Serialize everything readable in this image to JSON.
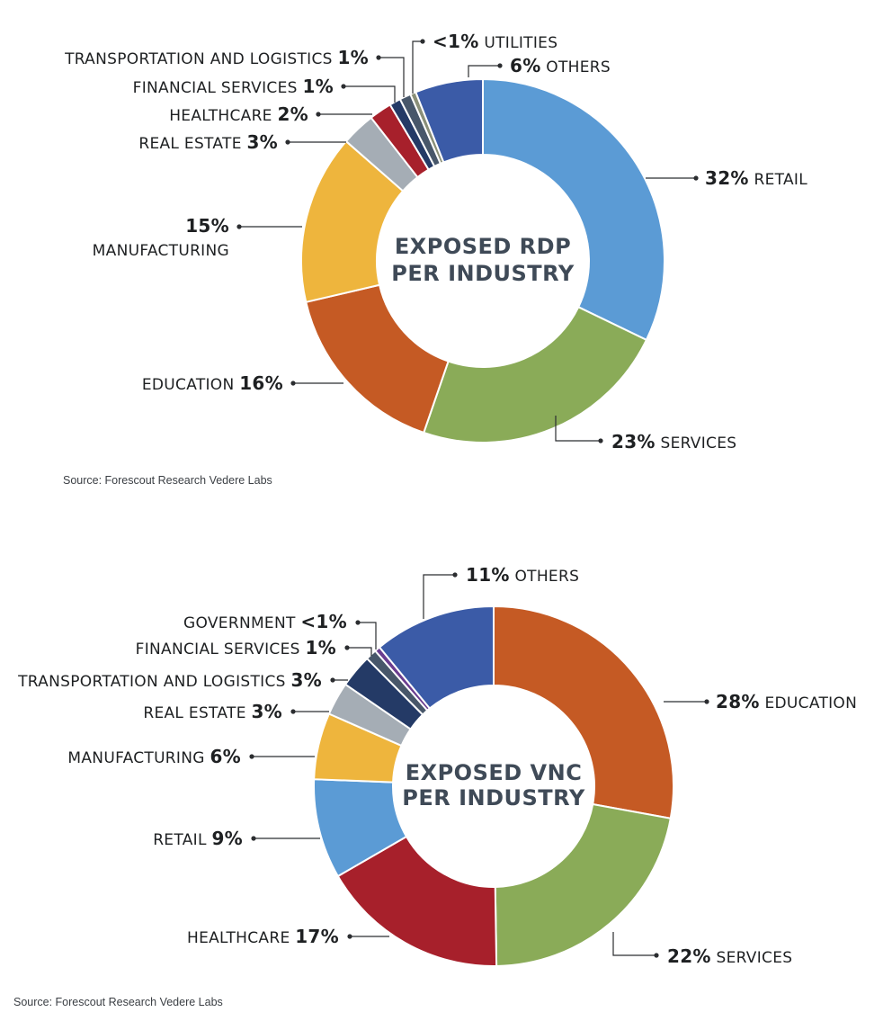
{
  "chart_data": [
    {
      "type": "pie",
      "title_lines": [
        "EXPOSED RDP",
        "PER INDUSTRY"
      ],
      "source": "Source: Forescout Research Vedere Labs",
      "slices": [
        {
          "name": "RETAIL",
          "value": 32,
          "pct_label": "32%",
          "color": "#5b9bd5"
        },
        {
          "name": "SERVICES",
          "value": 23,
          "pct_label": "23%",
          "color": "#8aab58"
        },
        {
          "name": "EDUCATION",
          "value": 16,
          "pct_label": "16%",
          "color": "#c55a24"
        },
        {
          "name": "MANUFACTURING",
          "value": 15,
          "pct_label": "15%",
          "color": "#eeb53d"
        },
        {
          "name": "REAL ESTATE",
          "value": 3,
          "pct_label": "3%",
          "color": "#a5adb5"
        },
        {
          "name": "HEALTHCARE",
          "value": 2,
          "pct_label": "2%",
          "color": "#a7202b"
        },
        {
          "name": "FINANCIAL SERVICES",
          "value": 1,
          "pct_label": "1%",
          "color": "#243a66"
        },
        {
          "name": "TRANSPORTATION AND LOGISTICS",
          "value": 1,
          "pct_label": "1%",
          "color": "#48576a"
        },
        {
          "name": "UTILITIES",
          "value": 0.5,
          "pct_label": "<1%",
          "color": "#8a8f78"
        },
        {
          "name": "OTHERS",
          "value": 6,
          "pct_label": "6%",
          "color": "#3b5ba7"
        }
      ]
    },
    {
      "type": "pie",
      "title_lines": [
        "EXPOSED VNC",
        "PER INDUSTRY"
      ],
      "source": "Source: Forescout Research Vedere Labs",
      "slices": [
        {
          "name": "EDUCATION",
          "value": 28,
          "pct_label": "28%",
          "color": "#c55a24"
        },
        {
          "name": "SERVICES",
          "value": 22,
          "pct_label": "22%",
          "color": "#8aab58"
        },
        {
          "name": "HEALTHCARE",
          "value": 17,
          "pct_label": "17%",
          "color": "#a7202b"
        },
        {
          "name": "RETAIL",
          "value": 9,
          "pct_label": "9%",
          "color": "#5b9bd5"
        },
        {
          "name": "MANUFACTURING",
          "value": 6,
          "pct_label": "6%",
          "color": "#eeb53d"
        },
        {
          "name": "REAL ESTATE",
          "value": 3,
          "pct_label": "3%",
          "color": "#a5adb5"
        },
        {
          "name": "TRANSPORTATION AND LOGISTICS",
          "value": 3,
          "pct_label": "3%",
          "color": "#243a66"
        },
        {
          "name": "FINANCIAL SERVICES",
          "value": 1,
          "pct_label": "1%",
          "color": "#48576a"
        },
        {
          "name": "GOVERNMENT",
          "value": 0.5,
          "pct_label": "<1%",
          "color": "#6a3d8f"
        },
        {
          "name": "OTHERS",
          "value": 11,
          "pct_label": "11%",
          "color": "#3b5ba7"
        }
      ]
    }
  ]
}
